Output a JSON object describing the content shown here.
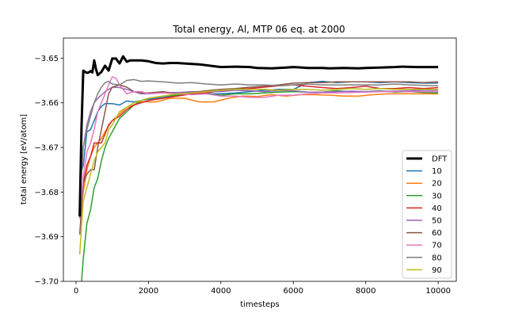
{
  "chart_data": {
    "type": "line",
    "title": "Total energy, Al, MTP 06 eq. at 2000",
    "xlabel": "timesteps",
    "ylabel": "total energy [eV/atom]",
    "xlim": [
      -350,
      10500
    ],
    "ylim": [
      -3.7,
      -3.6455
    ],
    "xticks": [
      0,
      2000,
      4000,
      6000,
      8000,
      10000
    ],
    "xtick_labels": [
      "0",
      "2000",
      "4000",
      "6000",
      "8000",
      "10000"
    ],
    "yticks": [
      -3.7,
      -3.69,
      -3.68,
      -3.67,
      -3.66,
      -3.65
    ],
    "ytick_labels": [
      "−3.70",
      "−3.69",
      "−3.68",
      "−3.67",
      "−3.66",
      "−3.65"
    ],
    "grid": false,
    "legend_position": "lower-right",
    "series": [
      {
        "name": "DFT",
        "color": "#000000",
        "width": 3,
        "x": [
          100,
          150,
          200,
          250,
          300,
          350,
          400,
          450,
          500,
          550,
          600,
          700,
          800,
          900,
          1000,
          1100,
          1200,
          1300,
          1400,
          1500,
          1600,
          1800,
          2000,
          2200,
          2400,
          2600,
          2800,
          3000,
          3400,
          3800,
          4000,
          4400,
          4800,
          5000,
          5400,
          5800,
          6000,
          6400,
          6800,
          7000,
          7400,
          7800,
          8000,
          8400,
          8800,
          9000,
          9400,
          9800,
          10000
        ],
        "y": [
          -3.6855,
          -3.6655,
          -3.6528,
          -3.6531,
          -3.6533,
          -3.6532,
          -3.6529,
          -3.6532,
          -3.6505,
          -3.6524,
          -3.6538,
          -3.6531,
          -3.6517,
          -3.6528,
          -3.6501,
          -3.6501,
          -3.6512,
          -3.6496,
          -3.6508,
          -3.6505,
          -3.6505,
          -3.6505,
          -3.6507,
          -3.6511,
          -3.6512,
          -3.6511,
          -3.6511,
          -3.6512,
          -3.6514,
          -3.6518,
          -3.652,
          -3.6519,
          -3.652,
          -3.6522,
          -3.6523,
          -3.6521,
          -3.652,
          -3.6522,
          -3.6522,
          -3.6523,
          -3.6522,
          -3.6523,
          -3.6522,
          -3.6521,
          -3.652,
          -3.6519,
          -3.652,
          -3.652,
          -3.652
        ]
      },
      {
        "name": "10",
        "color": "#1f77b4",
        "width": 1.5,
        "x": [
          100,
          200,
          300,
          400,
          500,
          600,
          700,
          800,
          1000,
          1200,
          1400,
          1600,
          2000,
          2400,
          2800,
          3200,
          3600,
          4000,
          4400,
          4800,
          5200,
          5600,
          6000,
          6400,
          6800,
          7200,
          7600,
          8000,
          8400,
          8800,
          9200,
          9600,
          10000
        ],
        "y": [
          -3.6765,
          -3.674,
          -3.6665,
          -3.666,
          -3.664,
          -3.662,
          -3.6608,
          -3.6602,
          -3.6602,
          -3.6605,
          -3.6596,
          -3.6598,
          -3.6592,
          -3.6588,
          -3.6583,
          -3.658,
          -3.658,
          -3.658,
          -3.6578,
          -3.6575,
          -3.6572,
          -3.657,
          -3.657,
          -3.6555,
          -3.6552,
          -3.6555,
          -3.6553,
          -3.6553,
          -3.6555,
          -3.6553,
          -3.6555,
          -3.6556,
          -3.6556
        ]
      },
      {
        "name": "20",
        "color": "#ff7f0e",
        "width": 1.5,
        "x": [
          100,
          200,
          300,
          400,
          500,
          600,
          700,
          800,
          1000,
          1200,
          1400,
          1600,
          1800,
          2000,
          2200,
          2600,
          3000,
          3400,
          3800,
          4200,
          4600,
          5000,
          5400,
          5800,
          6200,
          6600,
          7000,
          7400,
          7800,
          8200,
          8600,
          9000,
          9400,
          9800,
          10000
        ],
        "y": [
          -3.686,
          -3.68,
          -3.675,
          -3.672,
          -3.67,
          -3.669,
          -3.668,
          -3.6665,
          -3.664,
          -3.6625,
          -3.661,
          -3.6605,
          -3.6598,
          -3.6598,
          -3.6598,
          -3.659,
          -3.659,
          -3.6598,
          -3.6598,
          -3.659,
          -3.6585,
          -3.6586,
          -3.6582,
          -3.6585,
          -3.6582,
          -3.6582,
          -3.6583,
          -3.6585,
          -3.6585,
          -3.6582,
          -3.658,
          -3.658,
          -3.658,
          -3.658,
          -3.658
        ]
      },
      {
        "name": "30",
        "color": "#2ca02c",
        "width": 1.5,
        "x": [
          150,
          200,
          300,
          400,
          500,
          600,
          700,
          800,
          900,
          1000,
          1200,
          1400,
          1600,
          1800,
          2000,
          2400,
          2800,
          3200,
          3600,
          4000,
          4400,
          4800,
          5200,
          5600,
          6000,
          6400,
          6800,
          7200,
          7600,
          8000,
          8400,
          8800,
          9200,
          9600,
          10000
        ],
        "y": [
          -3.7,
          -3.695,
          -3.687,
          -3.684,
          -3.679,
          -3.677,
          -3.673,
          -3.67,
          -3.668,
          -3.6665,
          -3.6635,
          -3.662,
          -3.6605,
          -3.6595,
          -3.659,
          -3.6585,
          -3.6583,
          -3.658,
          -3.658,
          -3.6583,
          -3.658,
          -3.658,
          -3.6578,
          -3.6576,
          -3.6575,
          -3.6576,
          -3.6576,
          -3.6573,
          -3.6575,
          -3.6575,
          -3.6573,
          -3.6576,
          -3.6575,
          -3.6577,
          -3.6578
        ]
      },
      {
        "name": "40",
        "color": "#d62728",
        "width": 1.5,
        "x": [
          100,
          200,
          300,
          400,
          500,
          600,
          700,
          800,
          900,
          1000,
          1200,
          1400,
          1600,
          1800,
          2000,
          2400,
          2800,
          3200,
          3600,
          4000,
          4400,
          4800,
          5200,
          5600,
          6000,
          6400,
          6800,
          7200,
          7600,
          8000,
          8400,
          8800,
          9200,
          9600,
          10000
        ],
        "y": [
          -3.6855,
          -3.678,
          -3.674,
          -3.672,
          -3.669,
          -3.669,
          -3.669,
          -3.667,
          -3.665,
          -3.664,
          -3.663,
          -3.6615,
          -3.6605,
          -3.66,
          -3.6595,
          -3.659,
          -3.6585,
          -3.658,
          -3.6578,
          -3.6573,
          -3.657,
          -3.6568,
          -3.6565,
          -3.6562,
          -3.656,
          -3.6563,
          -3.6566,
          -3.6568,
          -3.6566,
          -3.6563,
          -3.6568,
          -3.6568,
          -3.6566,
          -3.6568,
          -3.6566
        ]
      },
      {
        "name": "50",
        "color": "#9467bd",
        "width": 1.5,
        "x": [
          100,
          200,
          300,
          400,
          500,
          600,
          700,
          800,
          1000,
          1200,
          1400,
          1600,
          1800,
          2000,
          2400,
          2800,
          3200,
          3600,
          4000,
          4400,
          4800,
          5200,
          5600,
          6000,
          6400,
          6800,
          7200,
          7600,
          8000,
          8400,
          8800,
          9200,
          9600,
          10000
        ],
        "y": [
          -3.68,
          -3.67,
          -3.665,
          -3.662,
          -3.66,
          -3.659,
          -3.6583,
          -3.6575,
          -3.6565,
          -3.6566,
          -3.657,
          -3.6575,
          -3.658,
          -3.658,
          -3.6577,
          -3.6577,
          -3.6575,
          -3.6575,
          -3.6575,
          -3.6572,
          -3.6573,
          -3.6575,
          -3.6573,
          -3.6573,
          -3.6576,
          -3.6576,
          -3.6575,
          -3.6574,
          -3.6575,
          -3.6574,
          -3.6574,
          -3.6573,
          -3.6572,
          -3.6572
        ]
      },
      {
        "name": "60",
        "color": "#8c564b",
        "width": 1.5,
        "x": [
          100,
          200,
          300,
          400,
          500,
          600,
          700,
          800,
          900,
          1000,
          1200,
          1400,
          1600,
          1800,
          2000,
          2400,
          2800,
          3200,
          3600,
          4000,
          4400,
          4800,
          5200,
          5600,
          6000,
          6400,
          6800,
          7200,
          7600,
          8000,
          8400,
          8800,
          9200,
          9600,
          10000
        ],
        "y": [
          -3.6895,
          -3.678,
          -3.676,
          -3.675,
          -3.675,
          -3.67,
          -3.666,
          -3.662,
          -3.658,
          -3.6565,
          -3.656,
          -3.6565,
          -3.6575,
          -3.6578,
          -3.6578,
          -3.6575,
          -3.658,
          -3.6577,
          -3.6573,
          -3.657,
          -3.6568,
          -3.6565,
          -3.6563,
          -3.656,
          -3.6556,
          -3.6555,
          -3.6555,
          -3.6553,
          -3.6553,
          -3.6553,
          -3.6553,
          -3.6553,
          -3.6553,
          -3.6555,
          -3.6553
        ]
      },
      {
        "name": "70",
        "color": "#e377c2",
        "width": 1.5,
        "x": [
          100,
          200,
          300,
          400,
          500,
          600,
          700,
          800,
          900,
          1000,
          1100,
          1200,
          1400,
          1600,
          1800,
          2000,
          2400,
          2800,
          3200,
          3600,
          4000,
          4400,
          4800,
          5200,
          5600,
          6000,
          6400,
          6800,
          7200,
          7600,
          8000,
          8400,
          8800,
          9200,
          9600,
          10000
        ],
        "y": [
          -3.686,
          -3.6765,
          -3.671,
          -3.669,
          -3.666,
          -3.662,
          -3.66,
          -3.658,
          -3.656,
          -3.6542,
          -3.6545,
          -3.656,
          -3.658,
          -3.6575,
          -3.6575,
          -3.658,
          -3.6578,
          -3.658,
          -3.6582,
          -3.658,
          -3.6585,
          -3.6585,
          -3.6588,
          -3.6588,
          -3.6583,
          -3.6583,
          -3.658,
          -3.6578,
          -3.6578,
          -3.6577,
          -3.6576,
          -3.6575,
          -3.6575,
          -3.6575,
          -3.6575,
          -3.6575
        ]
      },
      {
        "name": "80",
        "color": "#7f7f7f",
        "width": 1.5,
        "x": [
          100,
          200,
          300,
          400,
          500,
          600,
          700,
          800,
          900,
          1000,
          1200,
          1400,
          1600,
          1800,
          2000,
          2400,
          2800,
          3200,
          3600,
          4000,
          4400,
          4800,
          5200,
          5600,
          6000,
          6400,
          6800,
          7200,
          7600,
          8000,
          8400,
          8800,
          9200,
          9600,
          10000
        ],
        "y": [
          -3.682,
          -3.67,
          -3.666,
          -3.663,
          -3.66,
          -3.658,
          -3.6565,
          -3.6555,
          -3.6552,
          -3.6558,
          -3.656,
          -3.655,
          -3.6548,
          -3.6552,
          -3.6551,
          -3.6553,
          -3.6556,
          -3.6555,
          -3.6558,
          -3.656,
          -3.6558,
          -3.656,
          -3.656,
          -3.6562,
          -3.656,
          -3.6558,
          -3.656,
          -3.656,
          -3.656,
          -3.656,
          -3.656,
          -3.6558,
          -3.656,
          -3.6561,
          -3.6562
        ]
      },
      {
        "name": "90",
        "color": "#bcbd22",
        "width": 1.5,
        "x": [
          100,
          200,
          300,
          400,
          500,
          600,
          700,
          800,
          900,
          1000,
          1200,
          1400,
          1600,
          1800,
          2000,
          2400,
          2800,
          3200,
          3600,
          4000,
          4400,
          4800,
          5200,
          5600,
          6000,
          6400,
          6800,
          7200,
          7600,
          8000,
          8400,
          8800,
          9200,
          9600,
          10000
        ],
        "y": [
          -3.694,
          -3.682,
          -3.679,
          -3.676,
          -3.673,
          -3.671,
          -3.67,
          -3.669,
          -3.666,
          -3.665,
          -3.662,
          -3.661,
          -3.66,
          -3.6595,
          -3.659,
          -3.6585,
          -3.658,
          -3.6578,
          -3.6575,
          -3.6572,
          -3.657,
          -3.657,
          -3.657,
          -3.6572,
          -3.657,
          -3.657,
          -3.6572,
          -3.657,
          -3.6568,
          -3.657,
          -3.6568,
          -3.657,
          -3.657,
          -3.657,
          -3.657
        ]
      }
    ]
  }
}
